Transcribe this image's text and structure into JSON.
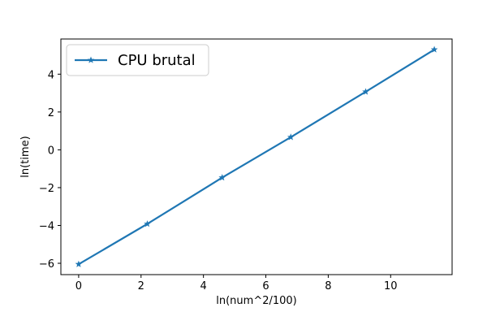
{
  "chart_data": {
    "type": "line",
    "xlabel": "ln(num^2/100)",
    "ylabel": "ln(time)",
    "xlim": [
      -0.57,
      11.97
    ],
    "ylim": [
      -6.6,
      5.86
    ],
    "xticks": [
      0,
      2,
      4,
      6,
      8,
      10
    ],
    "yticks": [
      -6,
      -4,
      -2,
      0,
      2,
      4
    ],
    "xtick_labels": [
      "0",
      "2",
      "4",
      "6",
      "8",
      "10"
    ],
    "ytick_labels": [
      "−6",
      "−4",
      "−2",
      "0",
      "2",
      "4"
    ],
    "grid": false,
    "legend_position": "top-left",
    "series": [
      {
        "name": "CPU brutal",
        "color": "#1f77b4",
        "marker": "star",
        "x": [
          0.0,
          2.2,
          4.6,
          6.8,
          9.2,
          11.4
        ],
        "y": [
          -6.05,
          -3.92,
          -1.47,
          0.67,
          3.07,
          5.3
        ]
      }
    ]
  }
}
